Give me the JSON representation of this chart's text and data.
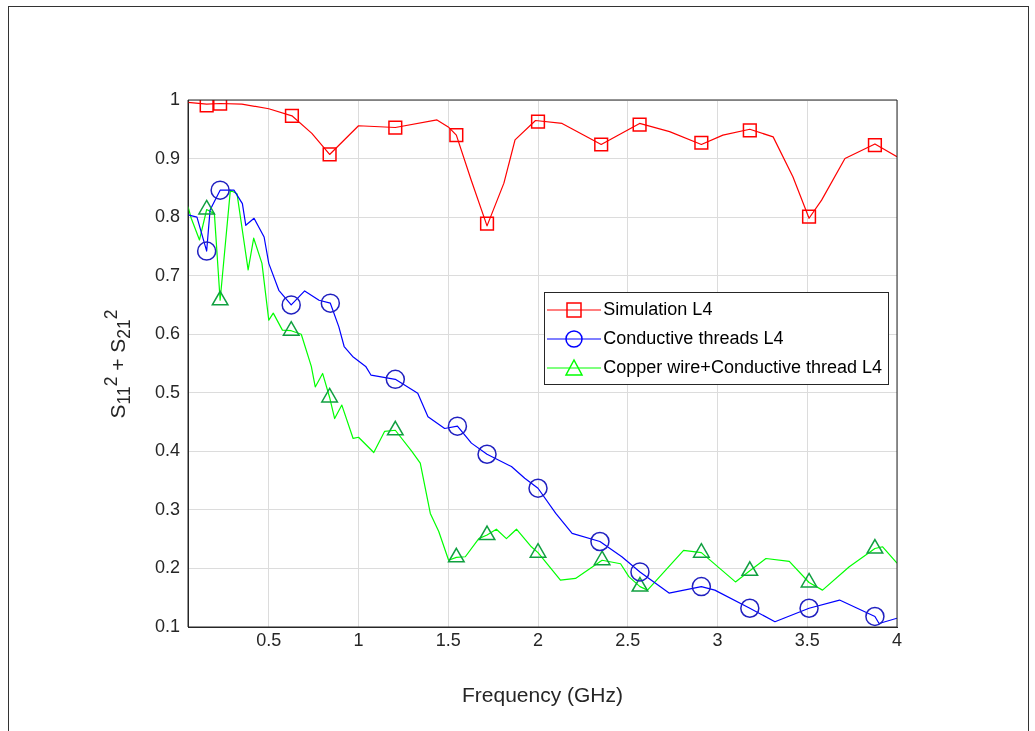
{
  "chart_data": {
    "type": "line",
    "xlabel": "Frequency (GHz)",
    "ylabel": "S$_{11}$$^{2}$ + S$_{21}$$^{2}$",
    "xlim": [
      0.05,
      4
    ],
    "ylim": [
      0.1,
      1
    ],
    "xticks": [
      0.5,
      1,
      1.5,
      2,
      2.5,
      3,
      3.5,
      4
    ],
    "yticks": [
      0.1,
      0.2,
      0.3,
      0.4,
      0.5,
      0.6,
      0.7,
      0.8,
      0.9,
      1
    ],
    "grid": true,
    "legend": "right",
    "series": [
      {
        "name": "Simulation L4",
        "color": "#ff0000",
        "x": [
          0.05,
          0.154,
          0.229,
          0.35,
          0.5,
          0.629,
          0.74,
          0.839,
          1.0,
          1.205,
          1.437,
          1.5,
          1.545,
          1.628,
          1.716,
          1.81,
          1.872,
          1.986,
          2.134,
          2.352,
          2.566,
          2.733,
          2.91,
          3.03,
          3.18,
          3.31,
          3.42,
          3.51,
          3.58,
          3.71,
          3.877,
          4.0
        ],
        "values": [
          0.996,
          0.993,
          0.994,
          0.993,
          0.985,
          0.973,
          0.943,
          0.907,
          0.956,
          0.953,
          0.966,
          0.954,
          0.94,
          0.863,
          0.785,
          0.858,
          0.932,
          0.965,
          0.96,
          0.924,
          0.96,
          0.946,
          0.924,
          0.94,
          0.95,
          0.937,
          0.869,
          0.798,
          0.829,
          0.9,
          0.925,
          0.903
        ]
      },
      {
        "type": "scatter",
        "color": "#ff0000",
        "marker": "square",
        "x": [
          0.154,
          0.229,
          0.629,
          0.839,
          1.205,
          1.545,
          1.716,
          2.0,
          2.352,
          2.566,
          2.91,
          3.18,
          3.51,
          3.877
        ],
        "values": [
          0.991,
          0.994,
          0.973,
          0.907,
          0.953,
          0.94,
          0.789,
          0.963,
          0.924,
          0.958,
          0.927,
          0.948,
          0.801,
          0.923
        ]
      },
      {
        "name": "Conductive threads L4",
        "color": "#0000ff",
        "x": [
          0.05,
          0.1,
          0.154,
          0.173,
          0.229,
          0.306,
          0.353,
          0.372,
          0.418,
          0.474,
          0.5,
          0.556,
          0.625,
          0.7,
          0.78,
          0.843,
          0.89,
          0.92,
          0.967,
          1.04,
          1.07,
          1.205,
          1.33,
          1.387,
          1.48,
          1.551,
          1.629,
          1.716,
          1.852,
          1.926,
          2.0,
          2.099,
          2.19,
          2.345,
          2.467,
          2.568,
          2.73,
          2.91,
          2.985,
          3.18,
          3.32,
          3.51,
          3.68,
          3.877,
          3.9,
          4.0
        ],
        "values": [
          0.804,
          0.8,
          0.742,
          0.812,
          0.846,
          0.846,
          0.823,
          0.786,
          0.798,
          0.766,
          0.721,
          0.675,
          0.65,
          0.674,
          0.658,
          0.653,
          0.613,
          0.579,
          0.562,
          0.545,
          0.53,
          0.523,
          0.499,
          0.459,
          0.439,
          0.443,
          0.414,
          0.395,
          0.374,
          0.354,
          0.337,
          0.294,
          0.26,
          0.246,
          0.22,
          0.194,
          0.158,
          0.169,
          0.163,
          0.132,
          0.109,
          0.132,
          0.146,
          0.118,
          0.106,
          0.115
        ]
      },
      {
        "type": "scatter",
        "color": "#2020c0",
        "marker": "circle",
        "x": [
          0.154,
          0.229,
          0.625,
          0.843,
          1.205,
          1.551,
          1.716,
          2.0,
          2.345,
          2.568,
          2.91,
          3.18,
          3.51,
          3.877
        ],
        "values": [
          0.742,
          0.846,
          0.65,
          0.653,
          0.523,
          0.443,
          0.395,
          0.337,
          0.246,
          0.194,
          0.169,
          0.132,
          0.132,
          0.118
        ]
      },
      {
        "name": "Copper wire+Conductive thread L4",
        "color": "#00ff00",
        "x": [
          0.05,
          0.068,
          0.114,
          0.154,
          0.197,
          0.229,
          0.286,
          0.323,
          0.385,
          0.416,
          0.462,
          0.5,
          0.525,
          0.576,
          0.625,
          0.681,
          0.737,
          0.759,
          0.8,
          0.839,
          0.867,
          0.907,
          0.97,
          1.0,
          1.085,
          1.145,
          1.205,
          1.297,
          1.344,
          1.4,
          1.447,
          1.502,
          1.545,
          1.595,
          1.67,
          1.716,
          1.768,
          1.824,
          1.88,
          1.963,
          2.0,
          2.125,
          2.209,
          2.357,
          2.46,
          2.506,
          2.568,
          2.61,
          2.811,
          2.91,
          3.1,
          3.18,
          3.27,
          3.4,
          3.51,
          3.585,
          3.734,
          3.877,
          3.92,
          4.0
        ],
        "values": [
          0.818,
          0.798,
          0.761,
          0.813,
          0.806,
          0.658,
          0.846,
          0.84,
          0.71,
          0.764,
          0.721,
          0.624,
          0.636,
          0.607,
          0.606,
          0.6,
          0.545,
          0.51,
          0.533,
          0.492,
          0.456,
          0.479,
          0.422,
          0.424,
          0.398,
          0.434,
          0.436,
          0.4,
          0.38,
          0.294,
          0.263,
          0.214,
          0.219,
          0.22,
          0.251,
          0.257,
          0.267,
          0.251,
          0.267,
          0.237,
          0.227,
          0.18,
          0.183,
          0.214,
          0.208,
          0.186,
          0.169,
          0.163,
          0.231,
          0.227,
          0.177,
          0.196,
          0.217,
          0.212,
          0.176,
          0.163,
          0.203,
          0.234,
          0.237,
          0.209
        ]
      },
      {
        "type": "scatter",
        "color": "#10a040",
        "marker": "triangle",
        "x": [
          0.154,
          0.229,
          0.625,
          0.839,
          1.205,
          1.545,
          1.716,
          2.0,
          2.357,
          2.568,
          2.91,
          3.18,
          3.51,
          3.877
        ],
        "values": [
          0.813,
          0.658,
          0.606,
          0.492,
          0.436,
          0.219,
          0.257,
          0.227,
          0.214,
          0.169,
          0.227,
          0.196,
          0.176,
          0.234
        ]
      }
    ]
  }
}
